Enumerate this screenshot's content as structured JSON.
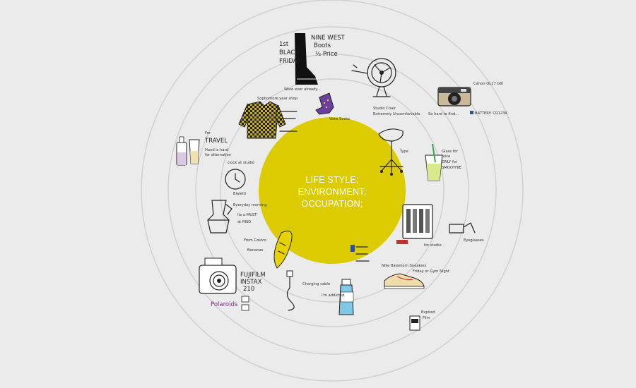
{
  "center": {
    "lines": [
      "LIFE STYLE;",
      "ENVIRONMENT;",
      "OCCUPATION;"
    ],
    "fill": "#dccb00",
    "text_color": "#ffffff"
  },
  "colors": {
    "background": "#ebebeb",
    "ring": "#cfcfcf",
    "ink": "#222222",
    "sock": "#6a3fa0",
    "checker": "#c8b400",
    "juice": "#d9ea8c",
    "bottle": "#7fc8e8",
    "tag_red": "#c0322e",
    "polaroid_purple": "#7a2a8c"
  },
  "notes": {
    "boots_line1": "NINE WEST",
    "boots_line2": "Boots",
    "boots_line3": "½ Price",
    "boots_side1": "1st",
    "boots_side2": "BLACK",
    "boots_side3": "FRIDAY",
    "boots_bottom": "Wore ever already...",
    "camera_top": "Canon QL17 GIII",
    "camera_bottom": "So hard to find...",
    "camera_battery": "BATTERY: CR123A",
    "chair_1": "Studio Chair",
    "chair_2": "Extremely Uncomfortable",
    "chair_3": "Type",
    "sock_1": "Vans Socks",
    "shirt_1": "Sophomore year shop",
    "travel_1": "For",
    "travel_2": "TRAVEL",
    "travel_3": "Hand is hard",
    "travel_4": "for alternation",
    "mocha_1": "Bialetti",
    "mocha_2": "Everyday morning",
    "mocha_3": "Its a MUST",
    "mocha_4": "at RISD",
    "banana_1": "From Costco",
    "banana_2": "Bananas",
    "polaroid_1": "FUJIFILM",
    "polaroid_2": "INSTAX",
    "polaroid_3": "210",
    "polaroid_tag": "Polaroids",
    "cable_1": "Charging cable",
    "bottle_1": "I'm addicted",
    "shoes_1": "Nike Balamorn Sneakers",
    "shoes_2": "Friday or Gym Night",
    "juice_1": "Glass for",
    "juice_2": "Juice",
    "juice_3": "ONLY for",
    "juice_4": "SMOOTHIE",
    "glasses_1": "Eyeglasses",
    "film_1": "Expired",
    "film_2": "Film",
    "clock_1": "clock at studio",
    "tools_1": "for studio"
  }
}
